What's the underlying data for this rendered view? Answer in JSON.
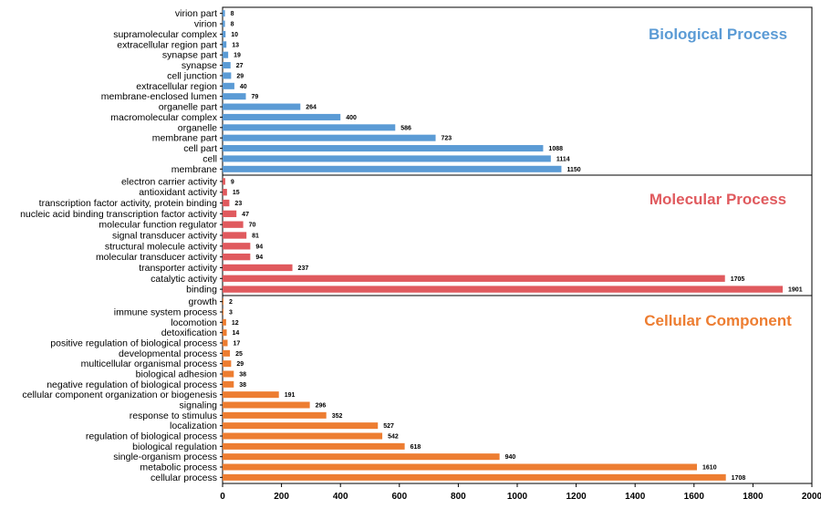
{
  "chart_data": {
    "type": "bar",
    "orientation": "horizontal",
    "xlim": [
      0,
      2000
    ],
    "x_ticks": [
      0,
      200,
      400,
      600,
      800,
      1000,
      1200,
      1400,
      1600,
      1800,
      2000
    ],
    "tick_labels": [
      "0",
      "200",
      "400",
      "600",
      "800",
      "1000",
      "1200",
      "1400",
      "1600",
      "1800",
      "2000"
    ],
    "grid": false,
    "panels": [
      {
        "title": "Biological Process",
        "color": "#5b9bd5",
        "categories": [
          "virion part",
          "virion",
          "supramolecular complex",
          "extracellular region part",
          "synapse part",
          "synapse",
          "cell junction",
          "extracellular region",
          "membrane-enclosed lumen",
          "organelle part",
          "macromolecular complex",
          "organelle",
          "membrane part",
          "cell part",
          "cell",
          "membrane"
        ],
        "values": [
          8,
          8,
          10,
          13,
          19,
          27,
          29,
          40,
          79,
          264,
          400,
          586,
          723,
          1088,
          1114,
          1150
        ],
        "value_labels": [
          "8",
          "8",
          "10",
          "13",
          "19",
          "27",
          "29",
          "40",
          "79",
          "264",
          "400",
          "586",
          "723",
          "1088",
          "1114",
          "1150"
        ]
      },
      {
        "title": "Molecular Process",
        "color": "#e05a5e",
        "categories": [
          "electron carrier activity",
          "antioxidant activity",
          "transcription factor activity, protein binding",
          "nucleic acid binding transcription factor activity",
          "molecular function regulator",
          "signal transducer activity",
          "structural molecule activity",
          "molecular transducer activity",
          "transporter activity",
          "catalytic activity",
          "binding"
        ],
        "values": [
          9,
          15,
          23,
          47,
          70,
          81,
          94,
          94,
          237,
          1705,
          1901
        ],
        "value_labels": [
          "9",
          "15",
          "23",
          "47",
          "70",
          "81",
          "94",
          "94",
          "237",
          "1705",
          "1901"
        ]
      },
      {
        "title": "Cellular Component",
        "color": "#ed7d31",
        "categories": [
          "growth",
          "immune system process",
          "locomotion",
          "detoxification",
          "positive regulation of biological process",
          "developmental process",
          "multicellular organismal process",
          "biological adhesion",
          "negative regulation of biological process",
          "cellular component organization or biogenesis",
          "signaling",
          "response to stimulus",
          "localization",
          "regulation of biological process",
          "biological regulation",
          "single-organism process",
          "metabolic process",
          "cellular process"
        ],
        "values": [
          2,
          3,
          12,
          14,
          17,
          25,
          29,
          38,
          38,
          191,
          296,
          352,
          527,
          542,
          618,
          940,
          1610,
          1708
        ],
        "value_labels": [
          "2",
          "3",
          "12",
          "14",
          "17",
          "25",
          "29",
          "38",
          "38",
          "191",
          "296",
          "352",
          "527",
          "542",
          "618",
          "940",
          "1610",
          "1708"
        ]
      }
    ]
  }
}
